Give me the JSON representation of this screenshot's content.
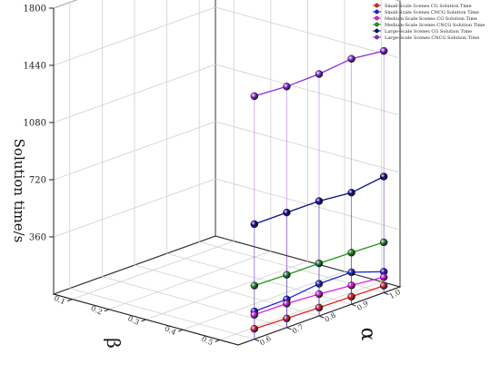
{
  "chart_data": {
    "type": "line",
    "subtype": "3d-waterfall",
    "title": "",
    "zlabel": "Solution time/s",
    "xlabel": "β",
    "ylabel": "α",
    "zlim": [
      0,
      1800
    ],
    "z_ticks": [
      360,
      720,
      1080,
      1440,
      1800
    ],
    "x_ticks": [
      0.1,
      0.2,
      0.3,
      0.4,
      0.5
    ],
    "y_ticks": [
      0.6,
      0.7,
      0.8,
      0.9,
      1.0
    ],
    "grid": true,
    "legend_position": "top-right",
    "series": [
      {
        "name": "Small-Scale Scenes CG Solution Time",
        "color": "#e82020",
        "values": [
          44,
          48,
          52,
          57,
          65
        ]
      },
      {
        "name": "Small-Scale Scenes CNCG Solution Time",
        "color": "#1f1fe0",
        "values": [
          132,
          202,
          202,
          178,
          175
        ]
      },
      {
        "name": "Medium-Scale Scenes CG Solution Time",
        "color": "#e020e0",
        "values": [
          98,
          119,
          137,
          151,
          153
        ]
      },
      {
        "name": "Medium-Scale Scenes CNCG Solution Time",
        "color": "#1a9a1a",
        "values": [
          317,
          325,
          331,
          332,
          337
        ]
      },
      {
        "name": "Large-Scale Scenes CG Solution Time",
        "color": "#0c0c8a",
        "values": [
          731,
          703,
          723,
          724,
          724
        ]
      },
      {
        "name": "Large-Scale Scenes CNCG Solution Time",
        "color": "#8a2be2",
        "values": [
          1522,
          1545,
          1523,
          1517,
          1530
        ]
      }
    ]
  }
}
